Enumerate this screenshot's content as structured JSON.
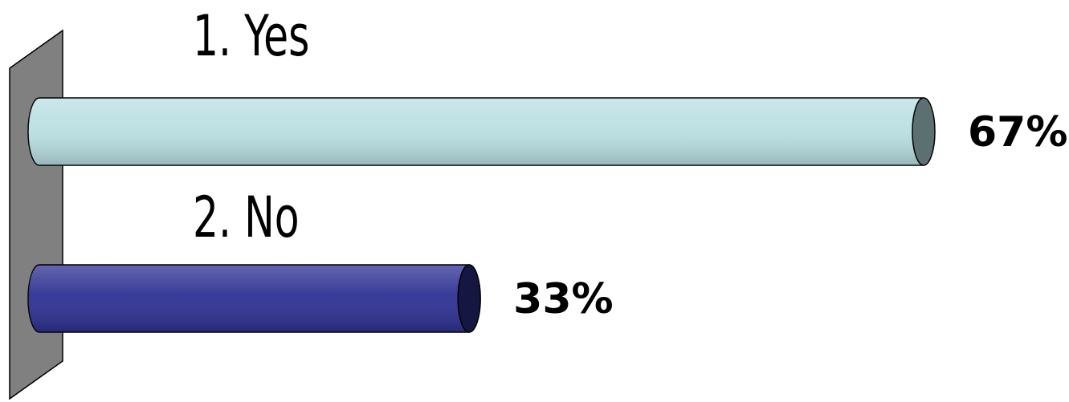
{
  "chart_data": {
    "type": "bar",
    "orientation": "horizontal",
    "categories": [
      "1. Yes",
      "2. No"
    ],
    "values": [
      67,
      33
    ],
    "value_labels": [
      "67%",
      "33%"
    ],
    "colors": [
      "#b9dfe2",
      "#2e3192"
    ]
  }
}
